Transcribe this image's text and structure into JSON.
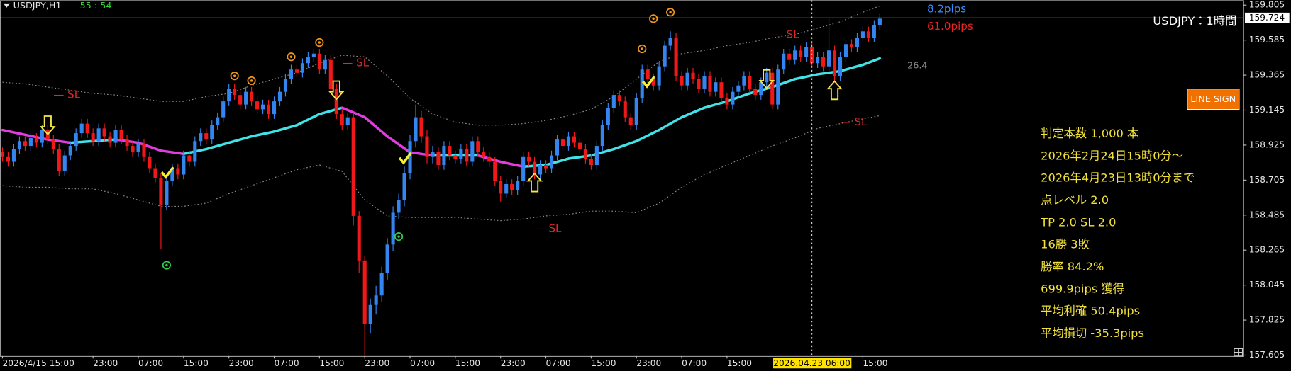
{
  "header": {
    "symbol": "USDJPY,H1",
    "timer": "55 : 54"
  },
  "chart_data": {
    "type": "candlestick",
    "categories": [
      "2026/4/15 15:00",
      null,
      null,
      null,
      null,
      null,
      null,
      null,
      null,
      null,
      null,
      null,
      null,
      null,
      null,
      null,
      "23:00",
      null,
      null,
      null,
      null,
      null,
      null,
      null,
      "07:00",
      null,
      null,
      null,
      null,
      null,
      null,
      null,
      "15:00",
      null,
      null,
      null,
      null,
      null,
      null,
      null,
      "23:00",
      null,
      null,
      null,
      null,
      null,
      null,
      null,
      "07:00",
      null,
      null,
      null,
      null,
      null,
      null,
      null,
      "15:00",
      null,
      null,
      null,
      null,
      null,
      null,
      null,
      "23:00",
      null,
      null,
      null,
      null,
      null,
      null,
      null,
      "07:00",
      null,
      null,
      null,
      null,
      null,
      null,
      null,
      "15:00",
      null,
      null,
      null,
      null,
      null,
      null,
      null,
      "23:00",
      null,
      null,
      null,
      null,
      null,
      null,
      null,
      "07:00",
      null,
      null,
      null,
      null,
      null,
      null,
      null,
      "15:00",
      null,
      null,
      null,
      null,
      null,
      null,
      null,
      "23:00",
      null,
      null,
      null,
      null,
      null,
      null,
      null,
      "07:00",
      null,
      null,
      null,
      null,
      null,
      null,
      null,
      "15:00",
      null,
      null,
      null,
      null,
      null,
      null,
      null,
      null,
      null,
      null,
      null,
      null,
      null,
      null,
      "2026.04.23 06:00",
      null,
      null,
      null,
      null,
      null,
      null,
      null,
      null,
      "15:00",
      null,
      null,
      null
    ],
    "open": [
      158.88,
      158.85,
      158.82,
      158.9,
      158.95,
      158.92,
      158.97,
      158.94,
      159.02,
      158.96,
      158.9,
      158.76,
      158.86,
      158.92,
      159.0,
      159.06,
      159.0,
      158.95,
      159.03,
      158.98,
      158.94,
      159.02,
      158.96,
      158.92,
      158.88,
      158.93,
      158.85,
      158.78,
      158.72,
      158.55,
      158.7,
      158.78,
      158.74,
      158.86,
      158.82,
      158.95,
      159.0,
      158.96,
      159.05,
      159.1,
      159.2,
      159.28,
      159.24,
      159.18,
      159.26,
      159.2,
      159.15,
      159.18,
      159.12,
      159.2,
      159.26,
      159.34,
      159.4,
      159.38,
      159.44,
      159.48,
      159.5,
      159.4,
      159.46,
      159.28,
      159.12,
      159.05,
      159.1,
      158.48,
      158.2,
      157.8,
      157.92,
      157.98,
      158.12,
      158.3,
      158.5,
      158.58,
      158.75,
      158.95,
      159.1,
      158.98,
      158.85,
      158.88,
      158.8,
      158.92,
      158.86,
      158.84,
      158.9,
      158.82,
      158.95,
      158.88,
      158.85,
      158.82,
      158.7,
      158.62,
      158.68,
      158.64,
      158.7,
      158.85,
      158.82,
      158.74,
      158.8,
      158.78,
      158.86,
      158.96,
      158.92,
      158.98,
      158.94,
      158.9,
      158.84,
      158.8,
      158.92,
      159.05,
      159.16,
      159.24,
      159.2,
      159.1,
      159.05,
      159.22,
      159.4,
      159.34,
      159.3,
      159.42,
      159.55,
      159.6,
      159.36,
      159.3,
      159.38,
      159.34,
      159.28,
      159.36,
      159.26,
      159.32,
      159.22,
      159.18,
      159.26,
      159.3,
      159.36,
      159.28,
      159.24,
      159.32,
      159.38,
      159.18,
      159.4,
      159.5,
      159.46,
      159.52,
      159.48,
      159.54,
      159.44,
      159.48,
      159.42,
      159.52,
      159.36,
      159.48,
      159.56,
      159.54,
      159.6,
      159.64,
      159.6,
      159.68
    ],
    "high": [
      158.91,
      158.88,
      158.93,
      158.98,
      158.98,
      159.0,
      159.0,
      159.05,
      159.05,
      158.99,
      158.93,
      158.89,
      158.95,
      159.03,
      159.09,
      159.09,
      159.03,
      159.06,
      159.06,
      159.01,
      159.05,
      159.05,
      158.99,
      158.95,
      158.96,
      158.96,
      158.88,
      158.81,
      158.75,
      158.73,
      158.81,
      158.81,
      158.89,
      158.89,
      158.98,
      159.03,
      159.03,
      159.08,
      159.13,
      159.23,
      159.31,
      159.31,
      159.27,
      159.29,
      159.29,
      159.23,
      159.21,
      159.21,
      159.23,
      159.29,
      159.37,
      159.43,
      159.43,
      159.47,
      159.51,
      159.53,
      159.53,
      159.49,
      159.49,
      159.31,
      159.15,
      159.13,
      159.13,
      158.51,
      158.23,
      157.96,
      158.04,
      158.16,
      158.34,
      158.54,
      158.62,
      158.79,
      158.99,
      159.18,
      159.14,
      159.02,
      158.92,
      158.91,
      158.95,
      158.95,
      158.89,
      158.93,
      158.93,
      158.98,
      158.98,
      158.91,
      158.88,
      158.85,
      158.73,
      158.71,
      158.71,
      158.73,
      158.88,
      158.88,
      158.85,
      158.83,
      158.83,
      158.89,
      158.99,
      158.99,
      159.01,
      159.01,
      158.97,
      158.93,
      158.87,
      158.95,
      159.08,
      159.19,
      159.27,
      159.27,
      159.23,
      159.13,
      159.25,
      159.43,
      159.43,
      159.37,
      159.45,
      159.58,
      159.64,
      159.63,
      159.39,
      159.41,
      159.41,
      159.37,
      159.39,
      159.39,
      159.35,
      159.35,
      159.25,
      159.29,
      159.33,
      159.39,
      159.39,
      159.31,
      159.35,
      159.41,
      159.41,
      159.43,
      159.53,
      159.53,
      159.55,
      159.55,
      159.57,
      159.57,
      159.51,
      159.51,
      159.72,
      159.55,
      159.51,
      159.59,
      159.59,
      159.63,
      159.67,
      159.67,
      159.71,
      159.75
    ],
    "low": [
      158.82,
      158.79,
      158.79,
      158.87,
      158.89,
      158.89,
      158.91,
      158.91,
      158.93,
      158.87,
      158.73,
      158.73,
      158.83,
      158.89,
      158.97,
      158.97,
      158.92,
      158.92,
      158.95,
      158.91,
      158.91,
      158.93,
      158.89,
      158.85,
      158.85,
      158.82,
      158.75,
      158.69,
      158.27,
      158.52,
      158.67,
      158.71,
      158.71,
      158.79,
      158.79,
      158.92,
      158.93,
      158.93,
      159.02,
      159.07,
      159.17,
      159.21,
      159.15,
      159.15,
      159.17,
      159.12,
      159.12,
      159.09,
      159.09,
      159.17,
      159.23,
      159.31,
      159.35,
      159.35,
      159.41,
      159.45,
      159.37,
      159.37,
      159.25,
      159.09,
      159.02,
      159.02,
      158.42,
      158.12,
      157.6,
      157.74,
      157.86,
      157.94,
      158.08,
      158.26,
      158.46,
      158.54,
      158.71,
      158.91,
      158.94,
      158.81,
      158.81,
      158.77,
      158.77,
      158.83,
      158.81,
      158.81,
      158.79,
      158.79,
      158.85,
      158.82,
      158.79,
      158.67,
      158.57,
      158.59,
      158.61,
      158.61,
      158.67,
      158.79,
      158.71,
      158.71,
      158.75,
      158.75,
      158.83,
      158.89,
      158.89,
      158.91,
      158.87,
      158.81,
      158.77,
      158.77,
      158.89,
      159.02,
      159.13,
      159.17,
      159.07,
      159.02,
      159.02,
      159.19,
      159.31,
      159.27,
      159.27,
      159.39,
      159.52,
      159.33,
      159.27,
      159.27,
      159.31,
      159.25,
      159.25,
      159.23,
      159.23,
      159.19,
      159.15,
      159.15,
      159.23,
      159.27,
      159.25,
      159.21,
      159.21,
      159.29,
      159.15,
      159.15,
      159.37,
      159.43,
      159.43,
      159.45,
      159.45,
      159.41,
      159.41,
      159.39,
      159.39,
      159.33,
      159.33,
      159.45,
      159.51,
      159.51,
      159.57,
      159.57,
      159.57,
      159.65
    ],
    "close": [
      158.85,
      158.82,
      158.9,
      158.95,
      158.92,
      158.97,
      158.94,
      159.02,
      158.96,
      158.9,
      158.76,
      158.86,
      158.92,
      159.0,
      159.06,
      159.0,
      158.95,
      159.03,
      158.98,
      158.94,
      159.02,
      158.96,
      158.92,
      158.88,
      158.93,
      158.85,
      158.78,
      158.72,
      158.55,
      158.7,
      158.78,
      158.74,
      158.86,
      158.82,
      158.95,
      159.0,
      158.96,
      159.05,
      159.1,
      159.2,
      159.28,
      159.24,
      159.18,
      159.26,
      159.2,
      159.15,
      159.18,
      159.12,
      159.2,
      159.26,
      159.34,
      159.4,
      159.38,
      159.44,
      159.48,
      159.5,
      159.4,
      159.46,
      159.28,
      159.12,
      159.05,
      159.1,
      158.48,
      158.2,
      157.8,
      157.92,
      157.98,
      158.12,
      158.3,
      158.5,
      158.58,
      158.75,
      158.95,
      159.1,
      158.98,
      158.85,
      158.88,
      158.8,
      158.92,
      158.86,
      158.84,
      158.9,
      158.82,
      158.95,
      158.88,
      158.85,
      158.82,
      158.7,
      158.62,
      158.68,
      158.64,
      158.7,
      158.85,
      158.82,
      158.74,
      158.8,
      158.78,
      158.86,
      158.96,
      158.92,
      158.98,
      158.94,
      158.9,
      158.84,
      158.8,
      158.92,
      159.05,
      159.16,
      159.24,
      159.2,
      159.1,
      159.05,
      159.22,
      159.4,
      159.34,
      159.3,
      159.42,
      159.55,
      159.6,
      159.36,
      159.3,
      159.38,
      159.34,
      159.28,
      159.36,
      159.26,
      159.32,
      159.22,
      159.18,
      159.26,
      159.3,
      159.36,
      159.28,
      159.24,
      159.32,
      159.38,
      159.18,
      159.4,
      159.5,
      159.46,
      159.52,
      159.48,
      159.54,
      159.44,
      159.48,
      159.42,
      159.52,
      159.36,
      159.48,
      159.56,
      159.54,
      159.6,
      159.64,
      159.6,
      159.68,
      159.72
    ],
    "up_color": "#3385f0",
    "down_color": "#f01818",
    "ylim": [
      157.599,
      159.836
    ],
    "yticks": [
      159.805,
      159.585,
      159.365,
      159.145,
      158.925,
      158.705,
      158.485,
      158.265,
      158.045,
      157.825,
      157.605
    ],
    "current_price": 159.724,
    "indicator": {
      "x": [
        0,
        4,
        8,
        12,
        16,
        20,
        24,
        28,
        32,
        36,
        40,
        44,
        48,
        52,
        56,
        60,
        64,
        68,
        72,
        76,
        80,
        84,
        88,
        92,
        96,
        100,
        104,
        108,
        112,
        116,
        120,
        124,
        128,
        132,
        136,
        140,
        144,
        148,
        152,
        155
      ],
      "ma": [
        159.02,
        158.99,
        158.96,
        158.94,
        158.95,
        158.96,
        158.94,
        158.89,
        158.87,
        158.9,
        158.94,
        158.98,
        159.01,
        159.05,
        159.12,
        159.16,
        159.1,
        158.98,
        158.88,
        158.86,
        158.86,
        158.86,
        158.82,
        158.79,
        158.8,
        158.84,
        158.86,
        158.9,
        158.95,
        159.02,
        159.1,
        159.16,
        159.2,
        159.25,
        159.29,
        159.34,
        159.37,
        159.39,
        159.43,
        159.47
      ],
      "upper": [
        159.32,
        159.31,
        159.29,
        159.27,
        159.25,
        159.24,
        159.22,
        159.2,
        159.2,
        159.23,
        159.25,
        159.3,
        159.34,
        159.38,
        159.44,
        159.49,
        159.48,
        159.36,
        159.22,
        159.12,
        159.07,
        159.05,
        159.05,
        159.06,
        159.08,
        159.11,
        159.15,
        159.23,
        159.34,
        159.45,
        159.5,
        159.52,
        159.55,
        159.57,
        159.6,
        159.62,
        159.66,
        159.7,
        159.76,
        159.8
      ],
      "lower": [
        158.67,
        158.66,
        158.66,
        158.65,
        158.65,
        158.62,
        158.58,
        158.54,
        158.54,
        158.56,
        158.62,
        158.67,
        158.72,
        158.77,
        158.8,
        158.76,
        158.58,
        158.48,
        158.47,
        158.47,
        158.47,
        158.46,
        158.45,
        158.46,
        158.48,
        158.49,
        158.51,
        158.51,
        158.5,
        158.56,
        158.66,
        158.74,
        158.8,
        158.86,
        158.92,
        158.97,
        159.03,
        159.06,
        159.09,
        159.11
      ],
      "ma_up_color": "#3fe3e8",
      "ma_down_color": "#e23ce0",
      "band_color": "#8a8a8a"
    },
    "signals": [
      {
        "kind": "down_arrow",
        "at": 8,
        "price": 159.04
      },
      {
        "kind": "down_arrow",
        "at": 59,
        "price": 159.26
      },
      {
        "kind": "down_arrow",
        "at": 135,
        "price": 159.33
      },
      {
        "kind": "up_arrow",
        "at": 94,
        "price": 158.7
      },
      {
        "kind": "up_arrow",
        "at": 147,
        "price": 159.28
      },
      {
        "kind": "check",
        "at": 29,
        "price": 158.75
      },
      {
        "kind": "check",
        "at": 71,
        "price": 158.84
      },
      {
        "kind": "check",
        "at": 114,
        "price": 159.32
      },
      {
        "kind": "orange_circle",
        "at": 41,
        "price": 159.36
      },
      {
        "kind": "orange_circle",
        "at": 44,
        "price": 159.33
      },
      {
        "kind": "orange_circle",
        "at": 51,
        "price": 159.48
      },
      {
        "kind": "orange_circle",
        "at": 56,
        "price": 159.57
      },
      {
        "kind": "orange_circle",
        "at": 113,
        "price": 159.53
      },
      {
        "kind": "orange_circle",
        "at": 115,
        "price": 159.72
      },
      {
        "kind": "orange_circle",
        "at": 118,
        "price": 159.76
      },
      {
        "kind": "green_circle",
        "at": 29,
        "price": 158.17
      },
      {
        "kind": "green_circle",
        "at": 70,
        "price": 158.35
      }
    ],
    "sl_labels": [
      {
        "label": "— SL",
        "at": 9,
        "price": 159.24
      },
      {
        "label": "— SL",
        "at": 60,
        "price": 159.44
      },
      {
        "label": "— SL",
        "at": 136,
        "price": 159.62
      },
      {
        "label": "— SL",
        "at": 94,
        "price": 158.4
      },
      {
        "label": "— SL",
        "at": 148,
        "price": 159.07
      }
    ],
    "pips_up": "8.2pips",
    "pips_down": "61.0pips",
    "side_value": 26.4,
    "chart_label": "USDJPY：1時間"
  },
  "button": "LINE SIGN",
  "stats": [
    "判定本数 1,000 本",
    "2026年2月24日15時0分～",
    "2026年4月23日13時0分まで",
    "点レベル 2.0",
    "TP 2.0 SL 2.0",
    "16勝 3敗",
    "勝率 84.2%",
    "699.9pips 獲得",
    "平均利確 50.4pips",
    "平均損切 -35.3pips"
  ]
}
